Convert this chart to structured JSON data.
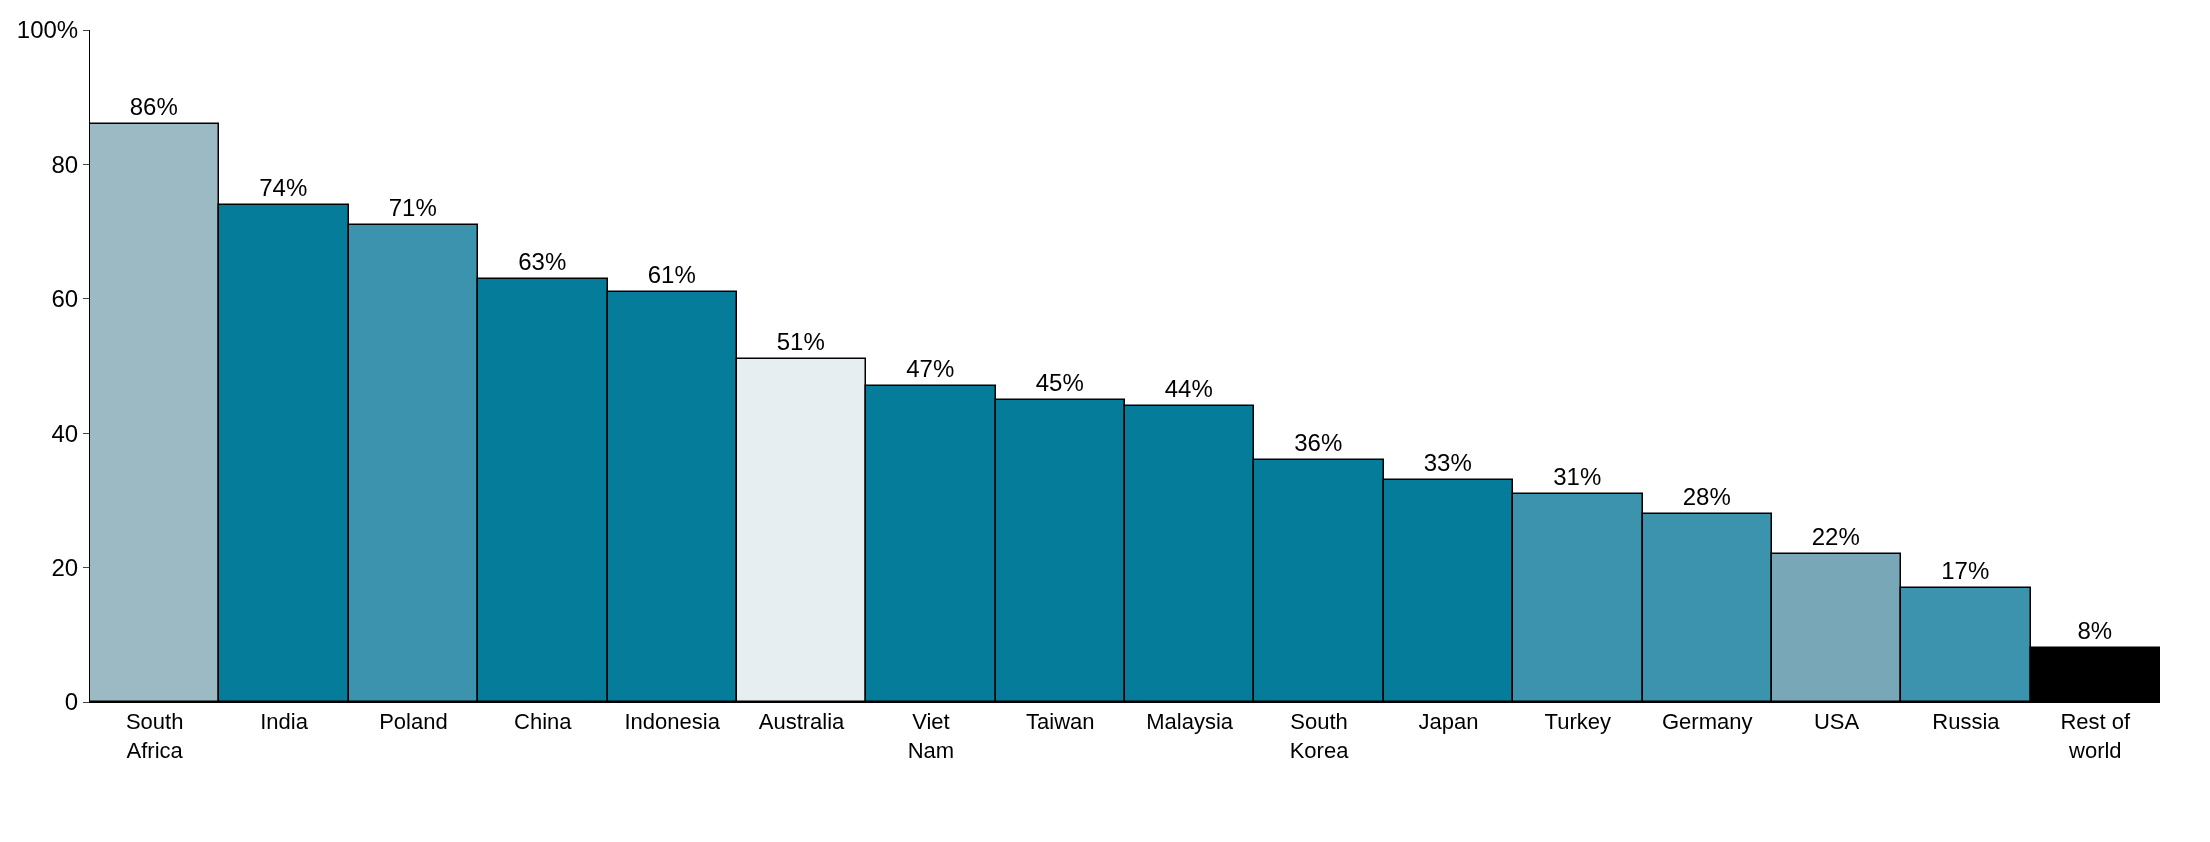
{
  "chart_data": {
    "type": "bar",
    "categories": [
      "South Africa",
      "India",
      "Poland",
      "China",
      "Indonesia",
      "Australia",
      "Viet Nam",
      "Taiwan",
      "Malaysia",
      "South Korea",
      "Japan",
      "Turkey",
      "Germany",
      "USA",
      "Russia",
      "Rest of world"
    ],
    "values": [
      86,
      74,
      71,
      63,
      61,
      51,
      47,
      45,
      44,
      36,
      33,
      31,
      28,
      22,
      17,
      8
    ],
    "colors": [
      "#9bbac4",
      "#057d9a",
      "#3b93ad",
      "#057d9a",
      "#057d9a",
      "#e6eef1",
      "#057d9a",
      "#057d9a",
      "#057d9a",
      "#057d9a",
      "#057d9a",
      "#3b93ad",
      "#3b93ad",
      "#78a8b7",
      "#3b93ad",
      "#000000"
    ],
    "value_labels": [
      "86%",
      "74%",
      "71%",
      "63%",
      "61%",
      "51%",
      "47%",
      "45%",
      "44%",
      "36%",
      "33%",
      "31%",
      "28%",
      "22%",
      "17%",
      "8%"
    ],
    "ylim": [
      0,
      100
    ],
    "yticks": [
      0,
      20,
      40,
      60,
      80,
      {
        "value": 100,
        "label": "100%"
      }
    ],
    "legend": false
  }
}
